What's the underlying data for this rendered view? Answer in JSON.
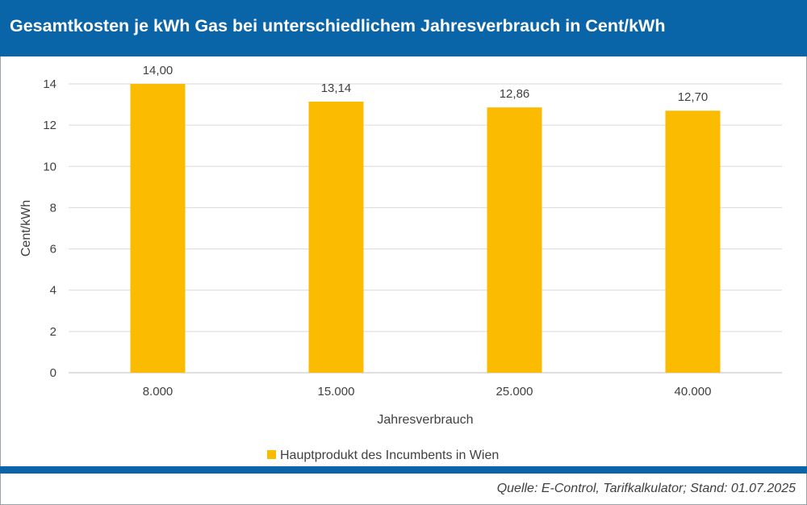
{
  "header": {
    "title": "Gesamtkosten je kWh Gas bei unterschiedlichem Jahresverbrauch in Cent/kWh"
  },
  "footer": {
    "source": "Quelle: E-Control, Tarifkalkulator; Stand: 01.07.2025"
  },
  "colors": {
    "header_bg": "#0a64a8",
    "bar": "#fbbb00",
    "grid": "#d9d9d9",
    "text": "#404040"
  },
  "chart_data": {
    "type": "bar",
    "categories": [
      "8.000",
      "15.000",
      "25.000",
      "40.000"
    ],
    "series": [
      {
        "name": "Hauptprodukt des Incumbents in Wien",
        "values": [
          14.0,
          13.14,
          12.86,
          12.7
        ],
        "labels": [
          "14,00",
          "13,14",
          "12,86",
          "12,70"
        ]
      }
    ],
    "title": "Gesamtkosten je kWh Gas bei unterschiedlichem Jahresverbrauch in Cent/kWh",
    "xlabel": "Jahresverbrauch",
    "ylabel": "Cent/kWh",
    "ylim": [
      0,
      14
    ],
    "yticks": [
      0,
      2,
      4,
      6,
      8,
      10,
      12,
      14
    ],
    "grid": true,
    "legend_position": "bottom"
  }
}
